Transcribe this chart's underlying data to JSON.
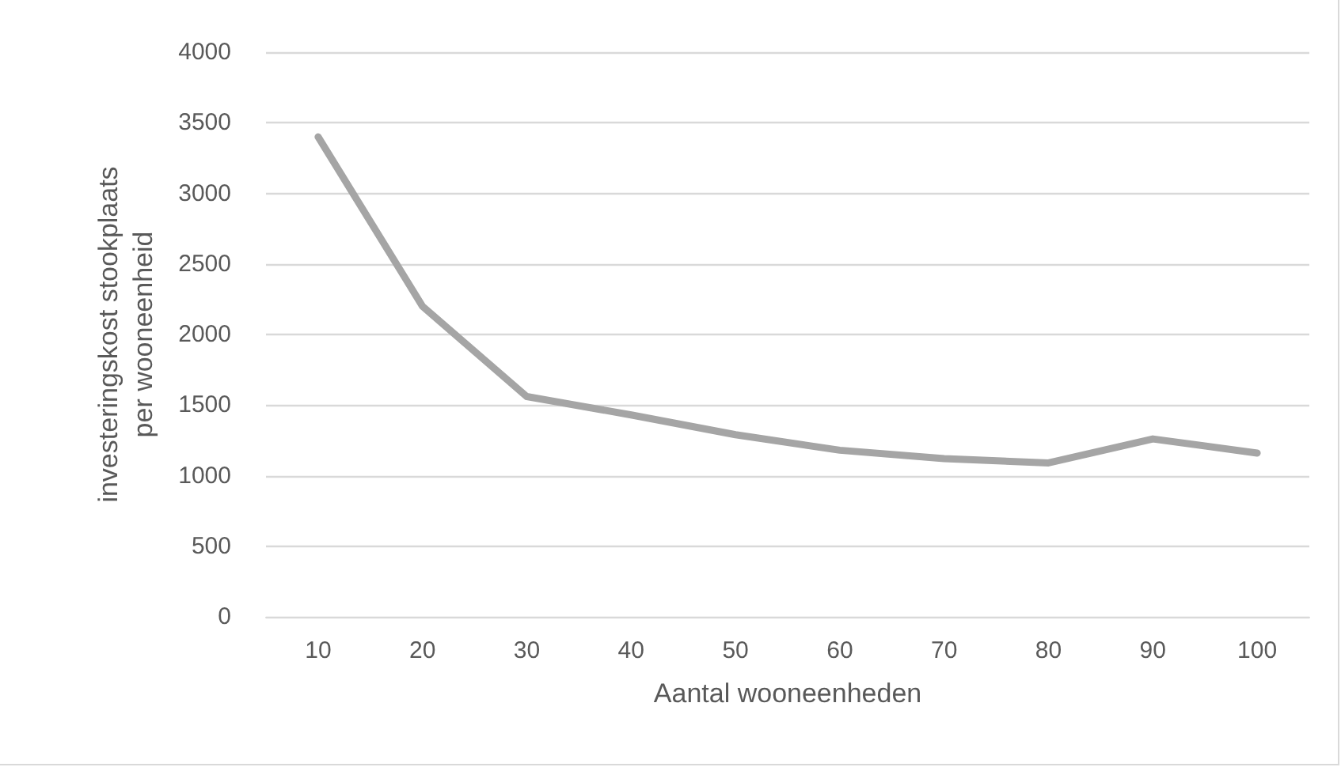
{
  "chart_data": {
    "type": "line",
    "xlabel": "Aantal wooneenheden",
    "ylabel": "investeringskost stookplaats\nper wooneenheid",
    "categories": [
      "10",
      "20",
      "30",
      "40",
      "50",
      "60",
      "70",
      "80",
      "90",
      "100"
    ],
    "series": [
      {
        "color": "#a5a5a5",
        "values": [
          3400,
          2200,
          1560,
          1430,
          1290,
          1180,
          1120,
          1090,
          1260,
          1160
        ]
      }
    ],
    "ylim": [
      0,
      4000
    ],
    "yticks": [
      0,
      500,
      1000,
      1500,
      2000,
      2500,
      3000,
      3500,
      4000
    ],
    "grid": "y",
    "marker": "none",
    "line_style": "solid"
  }
}
